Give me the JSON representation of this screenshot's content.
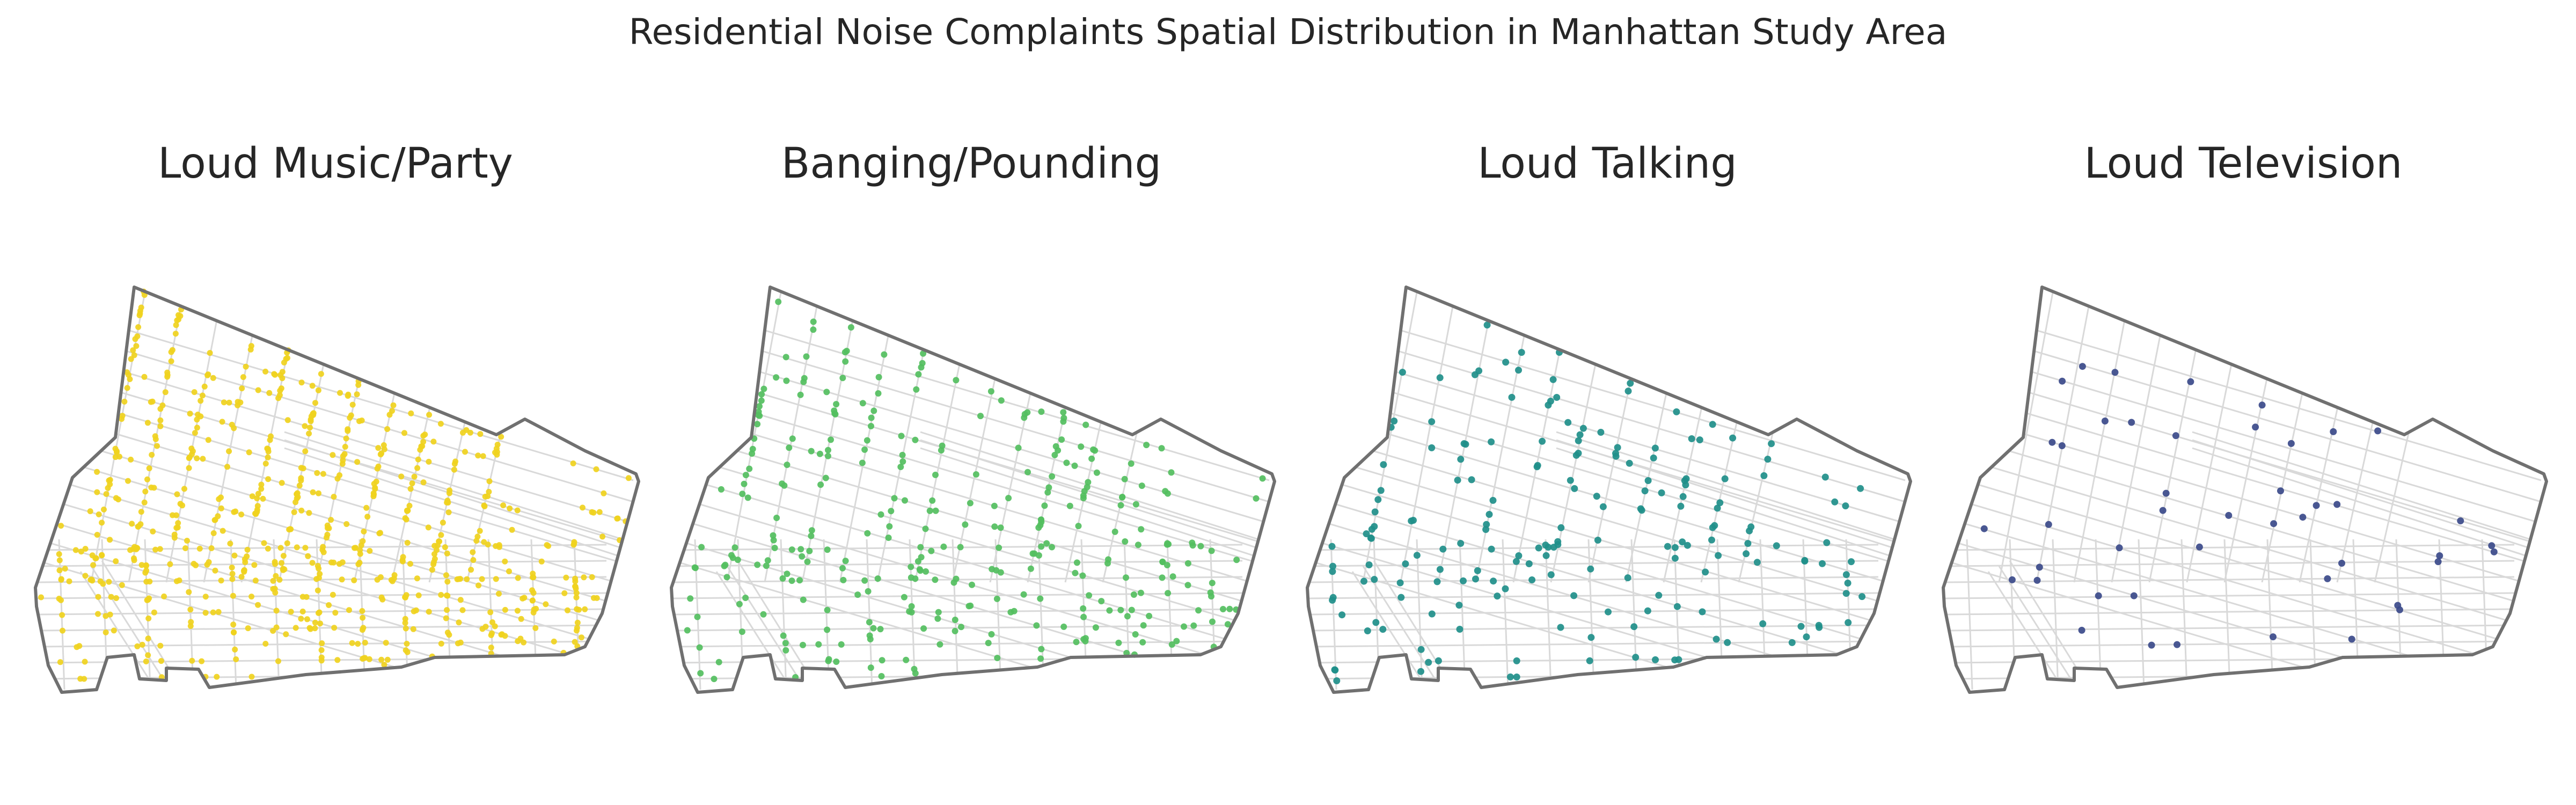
{
  "figure": {
    "title": "Residential Noise Complaints Spatial Distribution in Manhattan Study Area"
  },
  "panels": [
    {
      "title": "Loud Music/Party",
      "color": "#f0d21e",
      "density": "very high",
      "approx_points": 700,
      "seed": 11
    },
    {
      "title": "Banging/Pounding",
      "color": "#54bf5f",
      "density": "high",
      "approx_points": 330,
      "seed": 23
    },
    {
      "title": "Loud Talking",
      "color": "#1f8f8a",
      "density": "medium",
      "approx_points": 190,
      "seed": 37
    },
    {
      "title": "Loud Television",
      "color": "#3b4a8a",
      "density": "low",
      "approx_points": 45,
      "seed": 53
    }
  ],
  "map_style": {
    "boundary_color": "#707070",
    "street_color": "#d9d9d9",
    "background": "#ffffff"
  }
}
